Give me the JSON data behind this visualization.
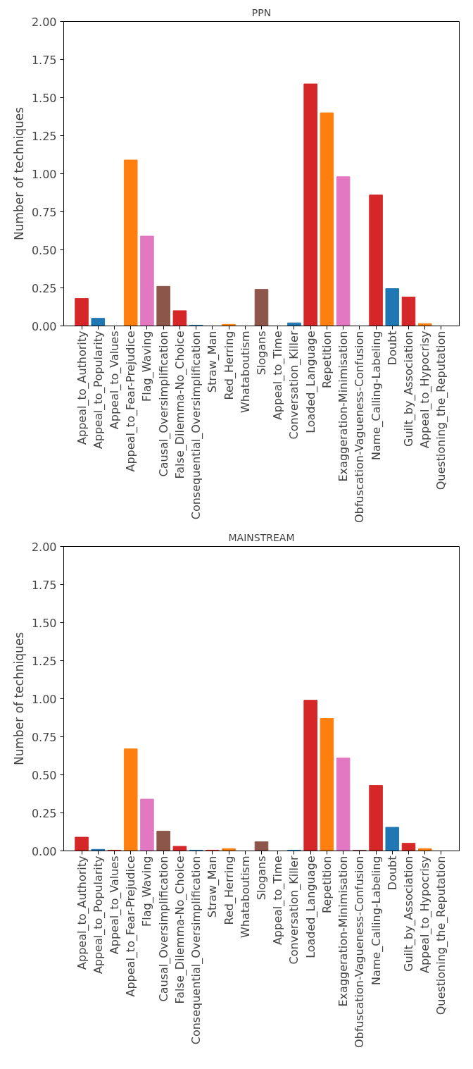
{
  "chart_data": [
    {
      "type": "bar",
      "title": "PPN",
      "ylabel": "Number of techniques",
      "categories": [
        "Appeal_to_Authority",
        "Appeal_to_Popularity",
        "Appeal_to_Values",
        "Appeal_to_Fear-Prejudice",
        "Flag_Waving",
        "Causal_Oversimplification",
        "False_Dilemma-No_Choice",
        "Consequential_Oversimplification",
        "Straw_Man",
        "Red_Herring",
        "Whataboutism",
        "Slogans",
        "Appeal_to_Time",
        "Conversation_Killer",
        "Loaded_Language",
        "Repetition",
        "Exaggeration-Minimisation",
        "Obfuscation-Vagueness-Confusion",
        "Name_Calling-Labeling",
        "Doubt",
        "Guilt_by_Association",
        "Appeal_to_Hypocrisy",
        "Questioning_the_Reputation"
      ],
      "values": [
        0.18,
        0.05,
        0,
        1.09,
        0.59,
        0.26,
        0.1,
        0.005,
        0,
        0.01,
        0,
        0.24,
        0,
        0.02,
        1.59,
        1.4,
        0.98,
        0,
        0.86,
        0.245,
        0.19,
        0.015,
        0
      ],
      "colors": [
        "#d62728",
        "#1f77b4",
        "#d62728",
        "#ff7f0e",
        "#e377c2",
        "#8c564b",
        "#d62728",
        "#1f77b4",
        "#d62728",
        "#ff7f0e",
        "#e377c2",
        "#8c564b",
        "#d62728",
        "#1f77b4",
        "#d62728",
        "#ff7f0e",
        "#e377c2",
        "#8c564b",
        "#d62728",
        "#1f77b4",
        "#d62728",
        "#ff7f0e",
        "#e377c2"
      ],
      "ylim": [
        0,
        2
      ],
      "yticks": [
        {
          "value": 0,
          "label": "0.00"
        },
        {
          "value": 0.25,
          "label": "0.25"
        },
        {
          "value": 0.5,
          "label": "0.50"
        },
        {
          "value": 0.75,
          "label": "0.75"
        },
        {
          "value": 1,
          "label": "1.00"
        },
        {
          "value": 1.25,
          "label": "1.25"
        },
        {
          "value": 1.5,
          "label": "1.50"
        },
        {
          "value": 1.75,
          "label": "1.75"
        },
        {
          "value": 2,
          "label": "2.00"
        }
      ],
      "grid": false
    },
    {
      "type": "bar",
      "title": "MAINSTREAM",
      "ylabel": "Number of techniques",
      "categories": [
        "Appeal_to_Authority",
        "Appeal_to_Popularity",
        "Appeal_to_Values",
        "Appeal_to_Fear-Prejudice",
        "Flag_Waving",
        "Causal_Oversimplification",
        "False_Dilemma-No_Choice",
        "Consequential_Oversimplification",
        "Straw_Man",
        "Red_Herring",
        "Whataboutism",
        "Slogans",
        "Appeal_to_Time",
        "Conversation_Killer",
        "Loaded_Language",
        "Repetition",
        "Exaggeration-Minimisation",
        "Obfuscation-Vagueness-Confusion",
        "Name_Calling-Labeling",
        "Doubt",
        "Guilt_by_Association",
        "Appeal_to_Hypocrisy",
        "Questioning_the_Reputation"
      ],
      "values": [
        0.09,
        0.01,
        0.005,
        0.67,
        0.34,
        0.13,
        0.03,
        0.005,
        0.005,
        0.015,
        0,
        0.06,
        0,
        0.005,
        0.99,
        0.87,
        0.61,
        0.005,
        0.43,
        0.155,
        0.05,
        0.015,
        0
      ],
      "colors": [
        "#d62728",
        "#1f77b4",
        "#d62728",
        "#ff7f0e",
        "#e377c2",
        "#8c564b",
        "#d62728",
        "#1f77b4",
        "#d62728",
        "#ff7f0e",
        "#e377c2",
        "#8c564b",
        "#d62728",
        "#1f77b4",
        "#d62728",
        "#ff7f0e",
        "#e377c2",
        "#8c564b",
        "#d62728",
        "#1f77b4",
        "#d62728",
        "#ff7f0e",
        "#e377c2"
      ],
      "ylim": [
        0,
        2
      ],
      "yticks": [
        {
          "value": 0,
          "label": "0.00"
        },
        {
          "value": 0.25,
          "label": "0.25"
        },
        {
          "value": 0.5,
          "label": "0.50"
        },
        {
          "value": 0.75,
          "label": "0.75"
        },
        {
          "value": 1,
          "label": "1.00"
        },
        {
          "value": 1.25,
          "label": "1.25"
        },
        {
          "value": 1.5,
          "label": "1.50"
        },
        {
          "value": 1.75,
          "label": "1.75"
        },
        {
          "value": 2,
          "label": "2.00"
        }
      ],
      "grid": false
    }
  ]
}
